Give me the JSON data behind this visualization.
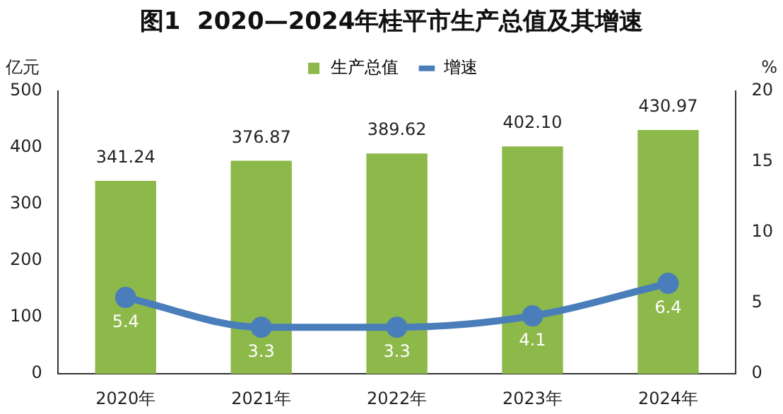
{
  "chart_data": {
    "type": "bar",
    "title": "图1  2020—2024年桂平市生产总值及其增速",
    "ylabel": "亿元",
    "y2label": "%",
    "categories": [
      "2020年",
      "2021年",
      "2022年",
      "2023年",
      "2024年"
    ],
    "series": [
      {
        "name": "生产总值",
        "color": "#8db84a",
        "values": [
          341.24,
          376.87,
          389.62,
          402.1,
          430.97
        ],
        "value_labels": [
          "341.24",
          "376.87",
          "389.62",
          "402.10",
          "430.97"
        ]
      },
      {
        "name": "增速",
        "type": "line",
        "axis": "y2",
        "color": "#4a7ebb",
        "values": [
          5.4,
          3.3,
          3.3,
          4.1,
          6.4
        ],
        "value_labels": [
          "5.4",
          "3.3",
          "3.3",
          "4.1",
          "6.4"
        ]
      }
    ],
    "ylim": [
      0,
      500
    ],
    "yticks": [
      0,
      100,
      200,
      300,
      400,
      500
    ],
    "y2lim": [
      0,
      20
    ],
    "y2ticks": [
      0,
      5,
      10,
      15,
      20
    ],
    "legend": "top",
    "marker": "circle",
    "line_style": "solid",
    "grid": false
  }
}
